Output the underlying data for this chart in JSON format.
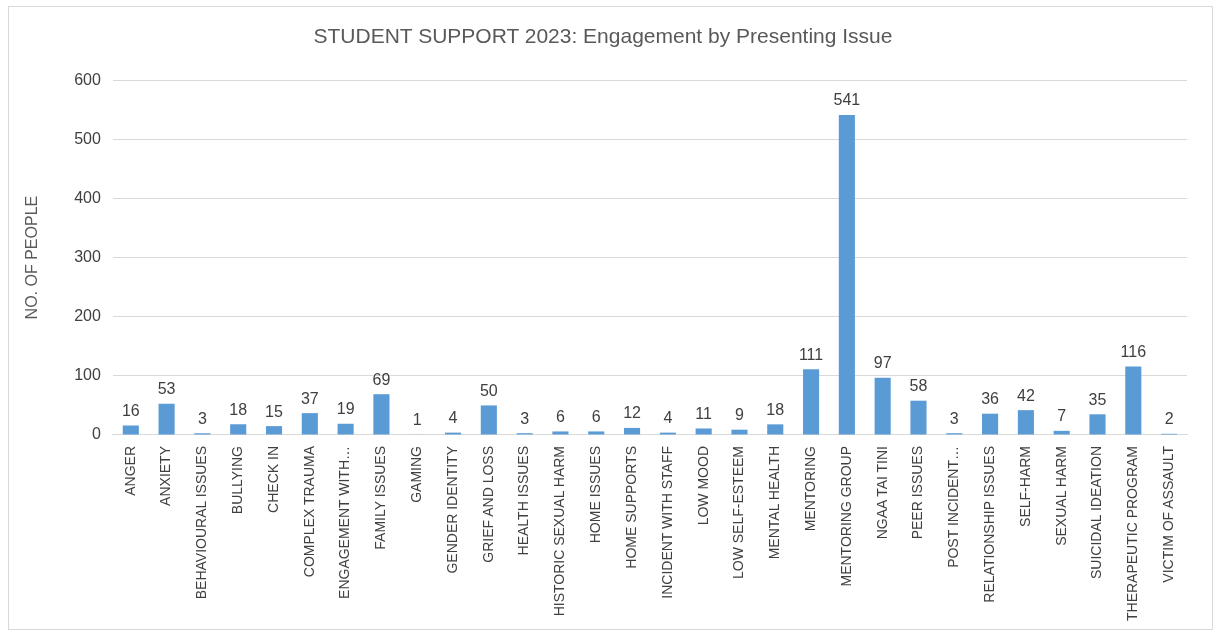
{
  "chart_data": {
    "type": "bar",
    "title": "STUDENT SUPPORT 2023: Engagement by Presenting Issue",
    "ylabel": "NO. OF PEOPLE",
    "categories": [
      "ANGER",
      "ANXIETY",
      "BEHAVIOURAL ISSUES",
      "BULLYING",
      "CHECK IN",
      "COMPLEX TRAUMA",
      "ENGAGEMENT WITH…",
      "FAMILY ISSUES",
      "GAMING",
      "GENDER IDENTITY",
      "GRIEF AND LOSS",
      "HEALTH ISSUES",
      "HISTORIC SEXUAL HARM",
      "HOME ISSUES",
      "HOME SUPPORTS",
      "INCIDENT WITH STAFF",
      "LOW MOOD",
      "LOW SELF-ESTEEM",
      "MENTAL HEALTH",
      "MENTORING",
      "MENTORING GROUP",
      "NGAA TAI TINI",
      "PEER ISSUES",
      "POST INCIDENT…",
      "RELATIONSHIP ISSUES",
      "SELF-HARM",
      "SEXUAL HARM",
      "SUICIDAL IDEATION",
      "THERAPEUTIC PROGRAM",
      "VICTIM OF ASSAULT"
    ],
    "values": [
      16,
      53,
      3,
      18,
      15,
      37,
      19,
      69,
      1,
      4,
      50,
      3,
      6,
      6,
      12,
      4,
      11,
      9,
      18,
      111,
      541,
      97,
      58,
      3,
      36,
      42,
      7,
      35,
      116,
      2
    ],
    "color": "#5b9bd5",
    "ylim": [
      0,
      600
    ],
    "yticks": [
      0,
      100,
      200,
      300,
      400,
      500,
      600
    ],
    "grid": "y",
    "data_labels": true
  }
}
